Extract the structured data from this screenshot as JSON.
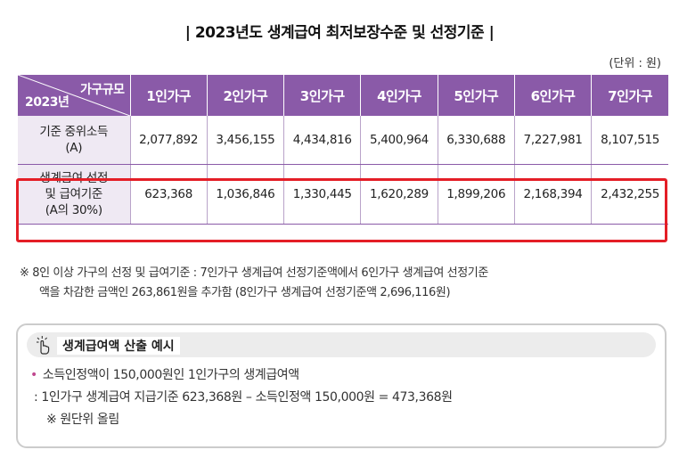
{
  "title": "| 2023년도 생계급여 최저보장수준 및 선정기준 |",
  "unit": "(단위 : 원)",
  "table": {
    "corner_top": "가구규모",
    "corner_bottom": "2023년",
    "headers": [
      "1인가구",
      "2인가구",
      "3인가구",
      "4인가구",
      "5인가구",
      "6인가구",
      "7인가구"
    ],
    "rows": [
      {
        "label_line1": "기준 중위소득",
        "label_line2": "(A)",
        "values": [
          "2,077,892",
          "3,456,155",
          "4,434,816",
          "5,400,964",
          "6,330,688",
          "7,227,981",
          "8,107,515"
        ]
      },
      {
        "label_line1": "생계급여 선정",
        "label_line2": "및 급여기준",
        "label_line3": "(A의 30%)",
        "values": [
          "623,368",
          "1,036,846",
          "1,330,445",
          "1,620,289",
          "1,899,206",
          "2,168,394",
          "2,432,255"
        ]
      }
    ]
  },
  "note": {
    "line1": "※ 8인 이상 가구의 선정 및 급여기준 : 7인가구 생계급여 선정기준액에서 6인가구 생계급여 선정기준",
    "line2": "액을 차감한 금액인 263,861원을 추가함 (8인가구 생계급여 선정기준액 2,696,116원)"
  },
  "example": {
    "icon": "pointing-hand-icon",
    "heading": "생계급여액 산출 예시",
    "line1": "소득인정액이 150,000원인 1인가구의 생계급여액",
    "line2": ": 1인가구 생계급여 지급기준 623,368원 – 소득인정액 150,000원 = 473,368원",
    "line3": "※ 원단위 올림"
  },
  "colors": {
    "header_purple": "#8a5aa8",
    "label_bg": "#efe9f3",
    "highlight_red": "#e41e26",
    "bullet_pink": "#c0488f"
  }
}
